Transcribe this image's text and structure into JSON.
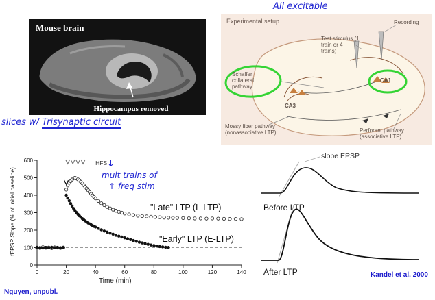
{
  "handwriting": {
    "all_excitable": "All excitable",
    "slices_prefix": "slices w/ ",
    "slices_underlined": "Trisynaptic circuit",
    "down_arrow": "↓",
    "mult_line1": "mult trains of",
    "mult_line2": "↑ freq stim",
    "nguyen": "Nguyen, unpubl.",
    "kandel": "Kandel et al. 2000",
    "ink_color": "#2026d2"
  },
  "brain_panel": {
    "title": "Mouse brain",
    "caption": "Hippocampus removed"
  },
  "setup_panel": {
    "title": "Experimental setup",
    "recording": "Recording",
    "test_stimulus": "Test stimulus (1 train or 4 trains)",
    "ca1": "CA1",
    "ca3": "CA3",
    "schaffer": "Schaffer collateral pathway",
    "mossy": "Mossy fiber pathway (nonassociative LTP)",
    "perforant": "Perforant pathway (associative LTP)",
    "highlight_color": "#35d435"
  },
  "traces": {
    "slope": "slope EPSP",
    "before": "Before LTP",
    "after": "After LTP"
  },
  "chart_data": {
    "type": "scatter",
    "title": "",
    "xlabel": "Time (min)",
    "ylabel": "fEPSP Slope (% of initial baseline)",
    "xlim": [
      0,
      140
    ],
    "ylim": [
      0,
      600
    ],
    "xticks": [
      0,
      20,
      40,
      60,
      80,
      100,
      120,
      140
    ],
    "yticks": [
      0,
      100,
      200,
      300,
      400,
      500,
      600
    ],
    "baseline": 100,
    "annotations": {
      "hfs_label": "HFS",
      "hfs_label_x": 40,
      "hfs_arrows_x": [
        21,
        24.5,
        28,
        31.5
      ],
      "hfs_y": 580,
      "onset_arrow_x": 20,
      "onset_arrow_y": 462
    },
    "series": [
      {
        "name": "\"Late\" LTP (L-LTP)",
        "marker": "open-circle",
        "points": [
          [
            0,
            100
          ],
          [
            2,
            98
          ],
          [
            4,
            103
          ],
          [
            6,
            99
          ],
          [
            8,
            101
          ],
          [
            10,
            97
          ],
          [
            12,
            102
          ],
          [
            14,
            100
          ],
          [
            16,
            98
          ],
          [
            18,
            101
          ],
          [
            20,
            432
          ],
          [
            21,
            456
          ],
          [
            22,
            471
          ],
          [
            23,
            481
          ],
          [
            24,
            490
          ],
          [
            25,
            497
          ],
          [
            26,
            500
          ],
          [
            27,
            496
          ],
          [
            28,
            491
          ],
          [
            29,
            484
          ],
          [
            30,
            477
          ],
          [
            31,
            468
          ],
          [
            32,
            458
          ],
          [
            33,
            448
          ],
          [
            34,
            438
          ],
          [
            35,
            428
          ],
          [
            36,
            418
          ],
          [
            37,
            408
          ],
          [
            38,
            399
          ],
          [
            39,
            390
          ],
          [
            40,
            382
          ],
          [
            42,
            367
          ],
          [
            44,
            354
          ],
          [
            46,
            343
          ],
          [
            48,
            333
          ],
          [
            50,
            325
          ],
          [
            52,
            317
          ],
          [
            54,
            311
          ],
          [
            56,
            305
          ],
          [
            58,
            300
          ],
          [
            60,
            295
          ],
          [
            63,
            290
          ],
          [
            66,
            286
          ],
          [
            69,
            283
          ],
          [
            72,
            281
          ],
          [
            75,
            279
          ],
          [
            78,
            277
          ],
          [
            81,
            275
          ],
          [
            84,
            274
          ],
          [
            87,
            272
          ],
          [
            90,
            271
          ],
          [
            93,
            270
          ],
          [
            96,
            270
          ],
          [
            100,
            269
          ],
          [
            104,
            268
          ],
          [
            108,
            267
          ],
          [
            112,
            267
          ],
          [
            116,
            266
          ],
          [
            120,
            267
          ],
          [
            124,
            266
          ],
          [
            128,
            265
          ],
          [
            132,
            264
          ],
          [
            136,
            264
          ],
          [
            140,
            263
          ]
        ]
      },
      {
        "name": "\"Early\" LTP (E-LTP)",
        "marker": "filled-circle",
        "points": [
          [
            0,
            102
          ],
          [
            2,
            100
          ],
          [
            4,
            98
          ],
          [
            6,
            101
          ],
          [
            8,
            99
          ],
          [
            10,
            102
          ],
          [
            12,
            99
          ],
          [
            14,
            101
          ],
          [
            16,
            99
          ],
          [
            18,
            100
          ],
          [
            20,
            400
          ],
          [
            21,
            384
          ],
          [
            22,
            368
          ],
          [
            23,
            352
          ],
          [
            24,
            338
          ],
          [
            25,
            324
          ],
          [
            26,
            312
          ],
          [
            27,
            301
          ],
          [
            28,
            291
          ],
          [
            29,
            282
          ],
          [
            30,
            274
          ],
          [
            31,
            266
          ],
          [
            32,
            259
          ],
          [
            33,
            253
          ],
          [
            34,
            247
          ],
          [
            35,
            241
          ],
          [
            36,
            236
          ],
          [
            37,
            231
          ],
          [
            38,
            226
          ],
          [
            39,
            222
          ],
          [
            40,
            218
          ],
          [
            42,
            210
          ],
          [
            44,
            202
          ],
          [
            46,
            195
          ],
          [
            48,
            189
          ],
          [
            50,
            183
          ],
          [
            52,
            177
          ],
          [
            54,
            171
          ],
          [
            56,
            166
          ],
          [
            58,
            161
          ],
          [
            60,
            156
          ],
          [
            62,
            151
          ],
          [
            64,
            146
          ],
          [
            66,
            141
          ],
          [
            68,
            136
          ],
          [
            70,
            131
          ],
          [
            72,
            127
          ],
          [
            74,
            123
          ],
          [
            76,
            119
          ],
          [
            78,
            115
          ],
          [
            80,
            112
          ],
          [
            82,
            109
          ],
          [
            84,
            106
          ],
          [
            86,
            104
          ],
          [
            88,
            102
          ],
          [
            90,
            101
          ]
        ]
      }
    ]
  }
}
